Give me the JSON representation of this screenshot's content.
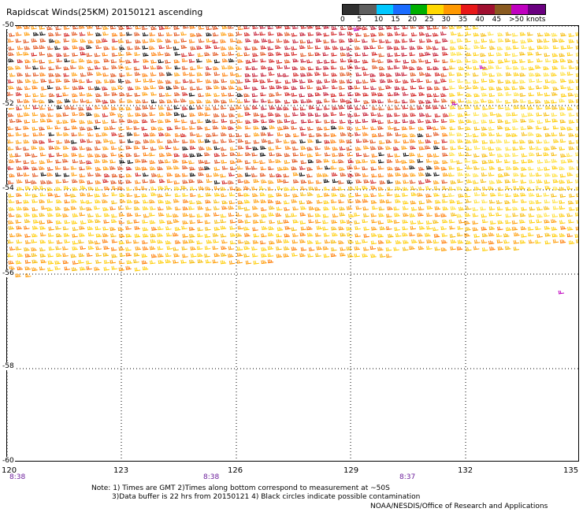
{
  "title": "Rapidscat Winds(25KM) 20150121 ascending",
  "scale": {
    "labels": [
      "0",
      "5",
      "10",
      "15",
      "20",
      "25",
      "30",
      "35",
      "40",
      "45",
      ">50 knots"
    ],
    "colors": [
      "#303030",
      "#5f5f5f",
      "#00c8ff",
      "#1a6cff",
      "#00b000",
      "#ffd800",
      "#ff9900",
      "#e81818",
      "#a01030",
      "#8a5a20",
      "#c000c0",
      "#6a0080"
    ]
  },
  "lat_labels": [
    "-50",
    "-52",
    "-54",
    "-56",
    "-58",
    "-60"
  ],
  "lon_labels": [
    "120",
    "123",
    "126",
    "129",
    "132",
    "135"
  ],
  "time_labels": [
    "8:38",
    "8:38",
    "8:37"
  ],
  "notes": [
    "Note: 1) Times are GMT 2)Times along bottom correspond to measurement at ~50S",
    "3)Data buffer is 22 hrs from 20150121 4) Black circles indicate possible contamination"
  ],
  "credit": "NOAA/NESDIS/Office of Research and Applications"
}
